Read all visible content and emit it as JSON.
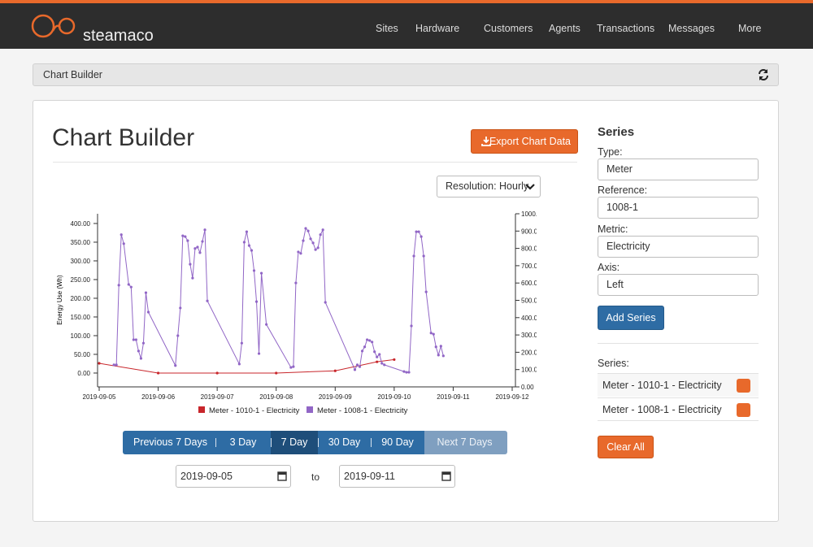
{
  "nav": {
    "brand": "steamaco",
    "items": [
      "Sites",
      "Hardware",
      "Customers",
      "Agents",
      "Transactions",
      "Messages",
      "More"
    ],
    "dropdown": [
      false,
      true,
      false,
      false,
      false,
      true,
      true
    ]
  },
  "breadcrumb": "Chart Builder",
  "page": {
    "title": "Chart Builder",
    "export_button": "Export Chart Data",
    "resolution": "Resolution: Hourly"
  },
  "chart_data": {
    "type": "line",
    "y_label": "Energy Use (Wh)",
    "xlim": [
      "2019-09-05",
      "2019-09-12"
    ],
    "xticks": [
      "2019-09-05",
      "2019-09-06",
      "2019-09-07",
      "2019-09-08",
      "2019-09-09",
      "2019-09-10",
      "2019-09-11",
      "2019-09-12"
    ],
    "ylim": [
      -37,
      426
    ],
    "yticks": [
      {
        "value": 0,
        "label": "0.00"
      },
      {
        "value": 50,
        "label": "50.00"
      },
      {
        "value": 100,
        "label": "100.00"
      },
      {
        "value": 150,
        "label": "150.00"
      },
      {
        "value": 200,
        "label": "200.00"
      },
      {
        "value": 250,
        "label": "250.00"
      },
      {
        "value": 300,
        "label": "300.00"
      },
      {
        "value": 350,
        "label": "350.00"
      },
      {
        "value": 400,
        "label": "400.00"
      }
    ],
    "y2lim": [
      0,
      1000
    ],
    "y2ticks": [
      {
        "value": 0,
        "label": "0.00"
      },
      {
        "value": 100,
        "label": "100.00"
      },
      {
        "value": 200,
        "label": "200.00"
      },
      {
        "value": 300,
        "label": "300.00"
      },
      {
        "value": 400,
        "label": "400.00"
      },
      {
        "value": 500,
        "label": "500.00"
      },
      {
        "value": 600,
        "label": "600.00"
      },
      {
        "value": 700,
        "label": "700.00"
      },
      {
        "value": 800,
        "label": "800.00"
      },
      {
        "value": 900,
        "label": "900.00"
      },
      {
        "value": 1000,
        "label": "1000.00"
      }
    ],
    "series": [
      {
        "name": "Meter - 1010-1 - Electricity",
        "color": "#c8262b",
        "x": [
          "2019-09-05 00:00",
          "2019-09-06 00:00",
          "2019-09-07 00:00",
          "2019-09-08 00:00",
          "2019-09-09 00:00",
          "2019-09-09 17:00",
          "2019-09-10 00:00"
        ],
        "values": [
          26,
          0,
          0,
          0,
          6,
          30,
          36
        ]
      },
      {
        "name": "Meter - 1008-1 - Electricity",
        "color": "#9166c6",
        "x": [
          "2019-09-05 06:00",
          "2019-09-05 07:00",
          "2019-09-05 08:00",
          "2019-09-05 09:00",
          "2019-09-05 10:00",
          "2019-09-05 12:00",
          "2019-09-05 13:00",
          "2019-09-05 14:00",
          "2019-09-05 15:00",
          "2019-09-05 16:00",
          "2019-09-05 17:00",
          "2019-09-05 18:00",
          "2019-09-05 19:00",
          "2019-09-05 20:00",
          "2019-09-06 07:00",
          "2019-09-06 08:00",
          "2019-09-06 09:00",
          "2019-09-06 10:00",
          "2019-09-06 11:00",
          "2019-09-06 12:00",
          "2019-09-06 13:00",
          "2019-09-06 14:00",
          "2019-09-06 15:00",
          "2019-09-06 16:00",
          "2019-09-06 17:00",
          "2019-09-06 18:00",
          "2019-09-06 19:00",
          "2019-09-06 20:00",
          "2019-09-07 09:00",
          "2019-09-07 10:00",
          "2019-09-07 11:00",
          "2019-09-07 12:00",
          "2019-09-07 13:00",
          "2019-09-07 14:00",
          "2019-09-07 15:00",
          "2019-09-07 16:00",
          "2019-09-07 17:00",
          "2019-09-07 18:00",
          "2019-09-07 20:00",
          "2019-09-08 06:00",
          "2019-09-08 07:00",
          "2019-09-08 08:00",
          "2019-09-08 09:00",
          "2019-09-08 10:00",
          "2019-09-08 11:00",
          "2019-09-08 12:00",
          "2019-09-08 13:00",
          "2019-09-08 14:00",
          "2019-09-08 15:00",
          "2019-09-08 16:00",
          "2019-09-08 17:00",
          "2019-09-08 18:00",
          "2019-09-08 19:00",
          "2019-09-08 20:00",
          "2019-09-09 08:00",
          "2019-09-09 09:00",
          "2019-09-09 10:00",
          "2019-09-09 11:00",
          "2019-09-09 12:00",
          "2019-09-09 13:00",
          "2019-09-09 14:00",
          "2019-09-09 15:00",
          "2019-09-09 16:00",
          "2019-09-09 17:00",
          "2019-09-09 18:00",
          "2019-09-09 19:00",
          "2019-09-09 20:00",
          "2019-09-10 04:00",
          "2019-09-10 05:00",
          "2019-09-10 06:00",
          "2019-09-10 07:00",
          "2019-09-10 08:00",
          "2019-09-10 09:00",
          "2019-09-10 10:00",
          "2019-09-10 11:00",
          "2019-09-10 12:00",
          "2019-09-10 13:00",
          "2019-09-10 15:00",
          "2019-09-10 16:00",
          "2019-09-10 17:00",
          "2019-09-10 18:00",
          "2019-09-10 19:00",
          "2019-09-10 20:00"
        ],
        "values": [
          22,
          22,
          235,
          370,
          346,
          237,
          230,
          89,
          89,
          59,
          39,
          80,
          215,
          163,
          20,
          100,
          174,
          367,
          365,
          354,
          291,
          254,
          333,
          337,
          322,
          352,
          383,
          193,
          24,
          80,
          350,
          378,
          341,
          328,
          274,
          191,
          52,
          267,
          130,
          15,
          17,
          241,
          324,
          320,
          354,
          387,
          380,
          359,
          348,
          330,
          335,
          370,
          383,
          189,
          9,
          22,
          17,
          59,
          70,
          89,
          87,
          83,
          57,
          43,
          50,
          26,
          22,
          4,
          2,
          2,
          126,
          313,
          378,
          378,
          365,
          313,
          217,
          107,
          104,
          70,
          48,
          72,
          46
        ]
      }
    ]
  },
  "pager": {
    "previous": "Previous 7 Days",
    "options": [
      "3 Day",
      "7 Day",
      "30 Day",
      "90 Day"
    ],
    "active": 1,
    "next": "Next 7 Days"
  },
  "dates": {
    "from": "2019-09-05",
    "to_label": "to",
    "to": "2019-09-11"
  },
  "sidebar": {
    "heading": "Series",
    "fields": [
      {
        "label": "Type:",
        "value": "Meter",
        "clearable": true
      },
      {
        "label": "Reference:",
        "value": "1008-1",
        "clearable": true
      },
      {
        "label": "Metric:",
        "value": "Electricity",
        "clearable": true
      },
      {
        "label": "Axis:",
        "value": "Left",
        "clearable": false
      }
    ],
    "add_button": "Add Series",
    "list_label": "Series:",
    "list": [
      "Meter - 1010-1 - Electricity",
      "Meter - 1008-1 - Electricity"
    ],
    "clear_button": "Clear All"
  }
}
